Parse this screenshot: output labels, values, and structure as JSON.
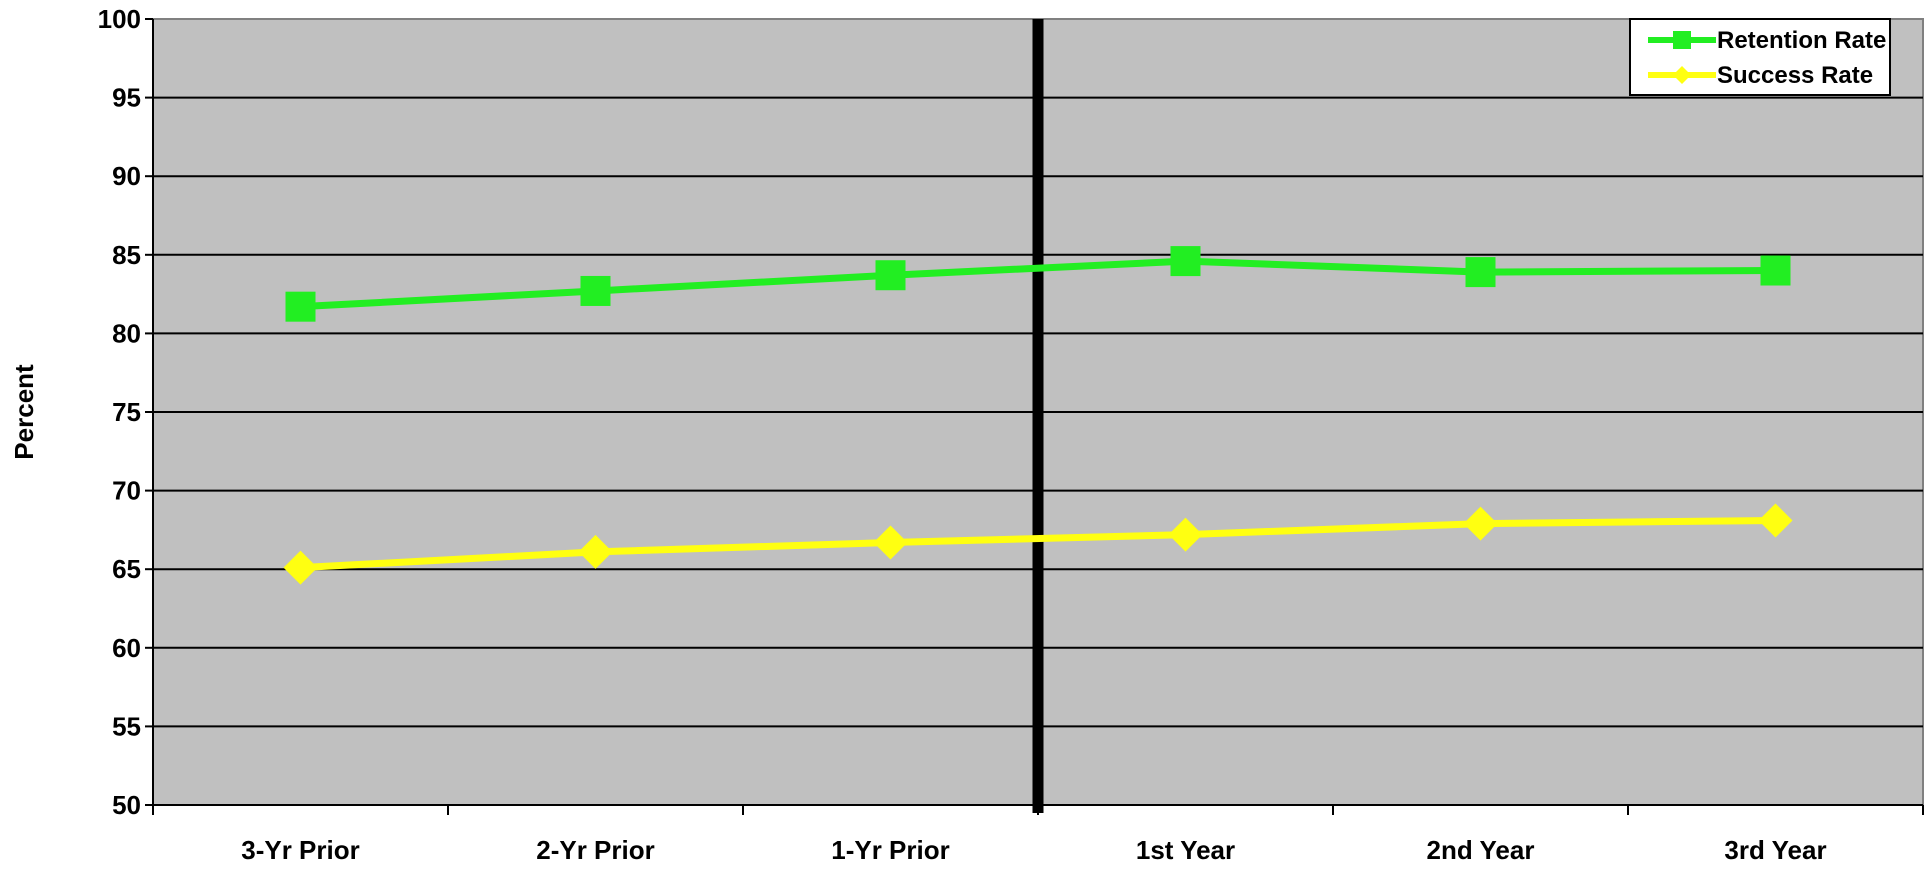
{
  "chart_data": {
    "type": "line",
    "title": "",
    "xlabel": "",
    "ylabel": "Percent",
    "categories": [
      "3-Yr Prior",
      "2-Yr Prior",
      "1-Yr Prior",
      "1st Year",
      "2nd Year",
      "3rd Year"
    ],
    "ylim": [
      50,
      100
    ],
    "ytick_step": 5,
    "grid": true,
    "plot_background": "#c0c0c0",
    "divider_after_category": "1-Yr Prior",
    "divider_color": "#000000",
    "legend_position": "top-right",
    "series": [
      {
        "name": "Retention Rate",
        "color": "#22ee22",
        "marker": "square",
        "values": [
          81.7,
          82.7,
          83.7,
          84.6,
          83.9,
          84.0
        ]
      },
      {
        "name": "Success Rate",
        "color": "#ffff11",
        "marker": "diamond",
        "values": [
          65.1,
          66.1,
          66.7,
          67.2,
          67.9,
          68.1
        ]
      }
    ]
  }
}
